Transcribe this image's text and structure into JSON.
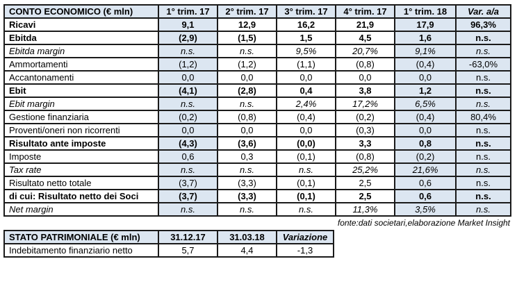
{
  "income_statement": {
    "header": {
      "cells": [
        "CONTO ECONOMICO (€ mln)",
        "1° trim. 17",
        "2° trim. 17",
        "3° trim. 17",
        "4° trim. 17",
        "1° trim. 18",
        "Var. a/a"
      ],
      "italic_cols": [
        6
      ]
    },
    "shaded_cols": [
      1,
      5,
      6
    ],
    "rows": [
      {
        "style": "bold",
        "cells": [
          "Ricavi",
          "9,1",
          "12,9",
          "16,2",
          "21,9",
          "17,9",
          "96,3%"
        ]
      },
      {
        "style": "bold",
        "cells": [
          "Ebitda",
          "(2,9)",
          "(1,5)",
          "1,5",
          "4,5",
          "1,6",
          "n.s."
        ]
      },
      {
        "style": "italic",
        "cells": [
          "Ebitda margin",
          "n.s.",
          "n.s.",
          "9,5%",
          "20,7%",
          "9,1%",
          "n.s."
        ]
      },
      {
        "style": "normal",
        "cells": [
          "Ammortamenti",
          "(1,2)",
          "(1,2)",
          "(1,1)",
          "(0,8)",
          "(0,4)",
          "-63,0%"
        ]
      },
      {
        "style": "normal",
        "cells": [
          "Accantonamenti",
          "0,0",
          "0,0",
          "0,0",
          "0,0",
          "0,0",
          "n.s."
        ]
      },
      {
        "style": "bold",
        "cells": [
          "Ebit",
          "(4,1)",
          "(2,8)",
          "0,4",
          "3,8",
          "1,2",
          "n.s."
        ]
      },
      {
        "style": "italic",
        "cells": [
          "Ebit margin",
          "n.s.",
          "n.s.",
          "2,4%",
          "17,2%",
          "6,5%",
          "n.s."
        ]
      },
      {
        "style": "normal",
        "cells": [
          "Gestione finanziaria",
          "(0,2)",
          "(0,8)",
          "(0,4)",
          "(0,2)",
          "(0,4)",
          "80,4%"
        ]
      },
      {
        "style": "normal",
        "cells": [
          "Proventi/oneri non ricorrenti",
          "0,0",
          "0,0",
          "0,0",
          "(0,3)",
          "0,0",
          "n.s."
        ]
      },
      {
        "style": "bold",
        "cells": [
          "Risultato ante imposte",
          "(4,3)",
          "(3,6)",
          "(0,0)",
          "3,3",
          "0,8",
          "n.s."
        ]
      },
      {
        "style": "normal",
        "cells": [
          "Imposte",
          "0,6",
          "0,3",
          "(0,1)",
          "(0,8)",
          "(0,2)",
          "n.s."
        ]
      },
      {
        "style": "italic",
        "cells": [
          "Tax rate",
          "n.s.",
          "n.s.",
          "n.s.",
          "25,2%",
          "21,6%",
          "n.s."
        ]
      },
      {
        "style": "normal",
        "cells": [
          "Risultato netto totale",
          "(3,7)",
          "(3,3)",
          "(0,1)",
          "2,5",
          "0,6",
          "n.s."
        ]
      },
      {
        "style": "bold",
        "cells": [
          "di cui: Risultato netto dei Soci",
          "(3,7)",
          "(3,3)",
          "(0,1)",
          "2,5",
          "0,6",
          "n.s."
        ]
      },
      {
        "style": "italic",
        "cells": [
          "Net margin",
          "n.s.",
          "n.s.",
          "n.s.",
          "11,3%",
          "3,5%",
          "n.s."
        ]
      }
    ]
  },
  "source_note": "fonte:dati societari,elaborazione Market Insight",
  "balance_sheet": {
    "header": {
      "cells": [
        "STATO PATRIMONIALE (€ mln)",
        "31.12.17",
        "31.03.18",
        "Variazione"
      ],
      "italic_cols": [
        3
      ]
    },
    "shaded_cols": [],
    "rows": [
      {
        "style": "normal",
        "cells": [
          "Indebitamento finanziario netto",
          "5,7",
          "4,4",
          "-1,3"
        ]
      }
    ]
  },
  "colors": {
    "shade_bg": "#dce6f1",
    "border": "#1a1a1a",
    "text": "#000000"
  }
}
